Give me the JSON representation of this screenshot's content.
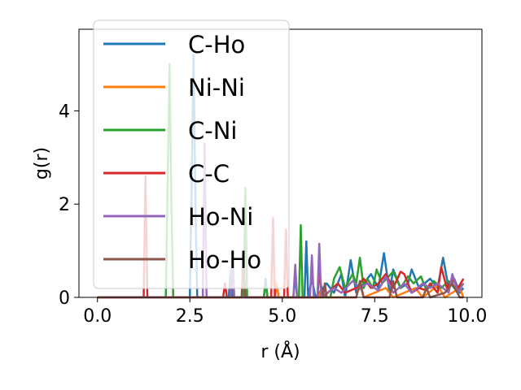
{
  "chart_data": {
    "type": "line",
    "title": "",
    "xlabel": "r (Å)",
    "ylabel": "g(r)",
    "xlim": [
      -0.5,
      10.4
    ],
    "ylim": [
      0,
      5.75
    ],
    "xticks": [
      0.0,
      2.5,
      5.0,
      7.5,
      10.0
    ],
    "xtick_labels": [
      "0.0",
      "2.5",
      "5.0",
      "7.5",
      "10.0"
    ],
    "yticks": [
      0,
      2,
      4
    ],
    "ytick_labels": [
      "0",
      "2",
      "4"
    ],
    "grid": false,
    "legend": {
      "placement": "upper-left",
      "entries": [
        "C-Ho",
        "Ni-Ni",
        "C-Ni",
        "C-C",
        "Ho-Ni",
        "Ho-Ho"
      ]
    },
    "series": [
      {
        "name": "C-Ho",
        "color": "#1f77b4",
        "points": [
          [
            0.0,
            0
          ],
          [
            2.5,
            0
          ],
          [
            2.55,
            2.5
          ],
          [
            2.6,
            5.2
          ],
          [
            2.65,
            2.0
          ],
          [
            2.7,
            0
          ],
          [
            3.55,
            0
          ],
          [
            3.6,
            0.5
          ],
          [
            3.65,
            0
          ],
          [
            4.5,
            0
          ],
          [
            4.55,
            0.4
          ],
          [
            4.6,
            0
          ],
          [
            5.3,
            0
          ],
          [
            5.35,
            0.5
          ],
          [
            5.4,
            0
          ],
          [
            5.6,
            0
          ],
          [
            5.65,
            1.2
          ],
          [
            5.7,
            0
          ],
          [
            5.8,
            0.4
          ],
          [
            5.9,
            0
          ],
          [
            6.2,
            0.3
          ],
          [
            6.4,
            0.1
          ],
          [
            6.6,
            0.5
          ],
          [
            6.7,
            0
          ],
          [
            6.85,
            0.8
          ],
          [
            7.0,
            0.1
          ],
          [
            7.2,
            0.3
          ],
          [
            7.4,
            0.5
          ],
          [
            7.6,
            0.2
          ],
          [
            7.75,
            0.95
          ],
          [
            7.9,
            0.1
          ],
          [
            8.0,
            0.6
          ],
          [
            8.2,
            0.2
          ],
          [
            8.4,
            0.3
          ],
          [
            8.5,
            0.6
          ],
          [
            8.7,
            0.2
          ],
          [
            9.0,
            0.4
          ],
          [
            9.2,
            0.2
          ],
          [
            9.35,
            0.85
          ],
          [
            9.5,
            0.2
          ],
          [
            9.65,
            0.4
          ],
          [
            9.8,
            0.1
          ],
          [
            9.9,
            0.2
          ]
        ]
      },
      {
        "name": "Ni-Ni",
        "color": "#ff7f0e",
        "points": [
          [
            0.0,
            0
          ],
          [
            4.8,
            0
          ],
          [
            4.85,
            0.3
          ],
          [
            4.9,
            0
          ],
          [
            6.0,
            0
          ],
          [
            6.05,
            0.2
          ],
          [
            6.1,
            0
          ],
          [
            7.0,
            0
          ],
          [
            7.1,
            0.3
          ],
          [
            7.2,
            0
          ],
          [
            7.8,
            0.2
          ],
          [
            8.0,
            0
          ],
          [
            8.6,
            0.2
          ],
          [
            8.8,
            0
          ],
          [
            9.2,
            0.25
          ],
          [
            9.4,
            0
          ],
          [
            9.8,
            0.2
          ],
          [
            9.9,
            0
          ]
        ]
      },
      {
        "name": "C-Ni",
        "color": "#2ca02c",
        "points": [
          [
            0.0,
            0
          ],
          [
            1.85,
            0
          ],
          [
            1.9,
            2.5
          ],
          [
            1.95,
            5.0
          ],
          [
            2.0,
            2.0
          ],
          [
            2.05,
            0
          ],
          [
            3.6,
            0
          ],
          [
            3.65,
            1.0
          ],
          [
            3.7,
            0
          ],
          [
            3.95,
            0
          ],
          [
            4.0,
            2.35
          ],
          [
            4.05,
            0
          ],
          [
            4.5,
            0
          ],
          [
            4.55,
            0.3
          ],
          [
            4.6,
            0
          ],
          [
            5.45,
            0
          ],
          [
            5.5,
            1.55
          ],
          [
            5.55,
            0
          ],
          [
            6.3,
            0
          ],
          [
            6.4,
            0.4
          ],
          [
            6.55,
            0.65
          ],
          [
            6.7,
            0.2
          ],
          [
            6.9,
            0.5
          ],
          [
            7.0,
            0.3
          ],
          [
            7.1,
            0.85
          ],
          [
            7.2,
            0.2
          ],
          [
            7.3,
            0.4
          ],
          [
            7.45,
            0.2
          ],
          [
            7.55,
            0.6
          ],
          [
            7.7,
            0.3
          ],
          [
            8.0,
            0.55
          ],
          [
            8.2,
            0.2
          ],
          [
            8.4,
            0.45
          ],
          [
            8.55,
            0.3
          ],
          [
            8.75,
            0.45
          ],
          [
            8.9,
            0.15
          ],
          [
            9.1,
            0.35
          ],
          [
            9.3,
            0.2
          ],
          [
            9.5,
            0.35
          ],
          [
            9.7,
            0.15
          ],
          [
            9.9,
            0.3
          ]
        ]
      },
      {
        "name": "C-C",
        "color": "#d62728",
        "points": [
          [
            0.0,
            0
          ],
          [
            1.25,
            0
          ],
          [
            1.3,
            2.6
          ],
          [
            1.35,
            0
          ],
          [
            3.4,
            0
          ],
          [
            3.45,
            0.3
          ],
          [
            3.5,
            0
          ],
          [
            4.7,
            0
          ],
          [
            4.75,
            1.7
          ],
          [
            4.8,
            0
          ],
          [
            5.05,
            0
          ],
          [
            5.1,
            1.45
          ],
          [
            5.15,
            0
          ],
          [
            5.95,
            0
          ],
          [
            6.0,
            0.5
          ],
          [
            6.1,
            0
          ],
          [
            6.5,
            0.3
          ],
          [
            6.7,
            0.1
          ],
          [
            7.0,
            0.2
          ],
          [
            7.2,
            0.4
          ],
          [
            7.4,
            0.2
          ],
          [
            7.6,
            0.3
          ],
          [
            7.8,
            0.5
          ],
          [
            8.0,
            0.2
          ],
          [
            8.2,
            0.55
          ],
          [
            8.3,
            0.5
          ],
          [
            8.5,
            0.1
          ],
          [
            8.7,
            0.2
          ],
          [
            8.9,
            0.15
          ],
          [
            9.0,
            0.3
          ],
          [
            9.2,
            0.1
          ],
          [
            9.3,
            0.65
          ],
          [
            9.45,
            0.2
          ],
          [
            9.6,
            0.4
          ],
          [
            9.75,
            0.2
          ],
          [
            9.9,
            0.4
          ]
        ]
      },
      {
        "name": "Ho-Ni",
        "color": "#9467bd",
        "points": [
          [
            0.0,
            0
          ],
          [
            2.85,
            0
          ],
          [
            2.9,
            3.3
          ],
          [
            2.95,
            0
          ],
          [
            3.6,
            0
          ],
          [
            3.65,
            0.8
          ],
          [
            3.7,
            0
          ],
          [
            5.3,
            0
          ],
          [
            5.35,
            0.7
          ],
          [
            5.4,
            0
          ],
          [
            5.75,
            0
          ],
          [
            5.8,
            0.9
          ],
          [
            5.85,
            0
          ],
          [
            5.95,
            0
          ],
          [
            6.0,
            1.15
          ],
          [
            6.05,
            0
          ],
          [
            6.4,
            0.2
          ],
          [
            6.6,
            0.1
          ],
          [
            6.9,
            0.35
          ],
          [
            7.1,
            0.2
          ],
          [
            7.3,
            0.3
          ],
          [
            7.6,
            0.15
          ],
          [
            7.8,
            0.45
          ],
          [
            8.0,
            0.1
          ],
          [
            8.3,
            0.3
          ],
          [
            8.5,
            0.1
          ],
          [
            8.8,
            0.3
          ],
          [
            9.0,
            0.2
          ],
          [
            9.2,
            0.3
          ],
          [
            9.5,
            0.1
          ],
          [
            9.6,
            0.5
          ],
          [
            9.75,
            0.1
          ],
          [
            9.9,
            0.3
          ]
        ]
      },
      {
        "name": "Ho-Ho",
        "color": "#8c564b",
        "points": [
          [
            0.0,
            0
          ],
          [
            3.9,
            0
          ],
          [
            3.95,
            0.9
          ],
          [
            4.0,
            0
          ],
          [
            6.1,
            0
          ],
          [
            6.15,
            0.3
          ],
          [
            6.2,
            0
          ],
          [
            7.0,
            0
          ],
          [
            7.1,
            0.35
          ],
          [
            7.2,
            0
          ],
          [
            7.9,
            0
          ],
          [
            8.0,
            0.35
          ],
          [
            8.1,
            0
          ],
          [
            8.8,
            0
          ],
          [
            8.9,
            0.2
          ],
          [
            9.0,
            0
          ],
          [
            9.4,
            0.1
          ],
          [
            9.6,
            0.3
          ],
          [
            9.8,
            0
          ],
          [
            9.9,
            0
          ]
        ]
      }
    ]
  }
}
